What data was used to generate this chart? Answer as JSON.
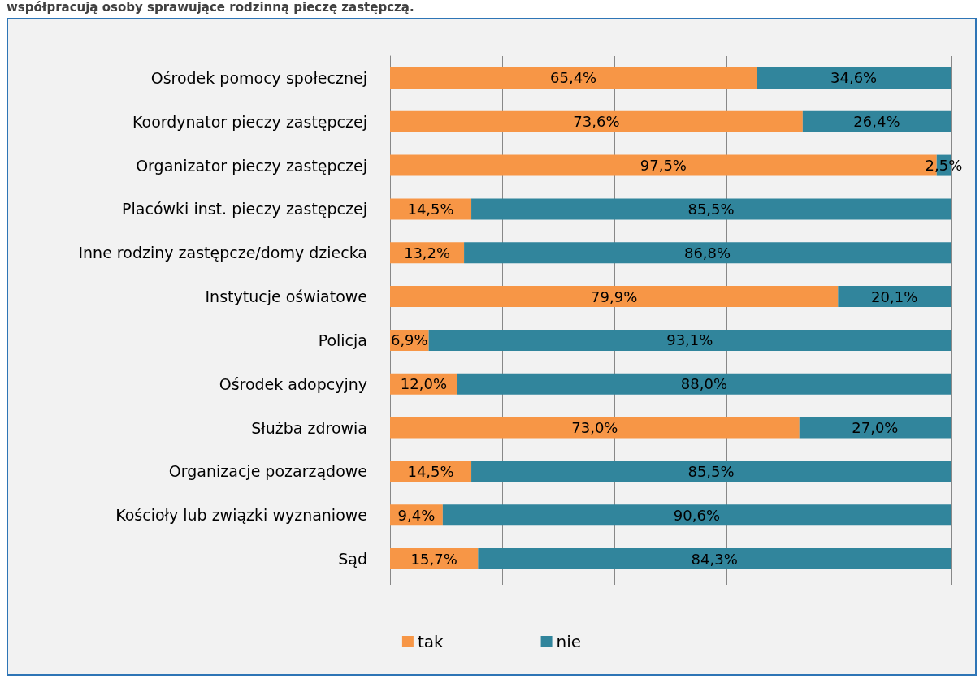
{
  "chart_data": {
    "type": "bar",
    "orientation": "horizontal",
    "stacked": true,
    "title": "współpracują osoby sprawujące rodzinną pieczę zastępczą.",
    "categories": [
      "Ośrodek pomocy społecznej",
      "Koordynator pieczy zastępczej",
      "Organizator pieczy zastępczej",
      "Placówki inst. pieczy zastępczej",
      "Inne rodziny zastępcze/domy dziecka",
      "Instytucje oświatowe",
      "Policja",
      "Ośrodek adopcyjny",
      "Służba zdrowia",
      "Organizacje pozarządowe",
      "Kościoły lub związki wyznaniowe",
      "Sąd"
    ],
    "series": [
      {
        "name": "tak",
        "color": "#f79646",
        "values": [
          65.4,
          73.6,
          97.5,
          14.5,
          13.2,
          79.9,
          6.9,
          12.0,
          73.0,
          14.5,
          9.4,
          15.7
        ],
        "value_labels": [
          "65,4%",
          "73,6%",
          "97,5%",
          "14,5%",
          "13,2%",
          "79,9%",
          "6,9%",
          "12,0%",
          "73,0%",
          "14,5%",
          "9,4%",
          "15,7%"
        ]
      },
      {
        "name": "nie",
        "color": "#31859c",
        "values": [
          34.6,
          26.4,
          2.5,
          85.5,
          86.8,
          20.1,
          93.1,
          88.0,
          27.0,
          85.5,
          90.6,
          84.3
        ],
        "value_labels": [
          "34,6%",
          "26,4%",
          "2,5%",
          "85,5%",
          "86,8%",
          "20,1%",
          "93,1%",
          "88,0%",
          "27,0%",
          "85,5%",
          "90,6%",
          "84,3%"
        ]
      }
    ],
    "tick_labels": "y",
    "grid": "x",
    "legend": "bottom"
  }
}
